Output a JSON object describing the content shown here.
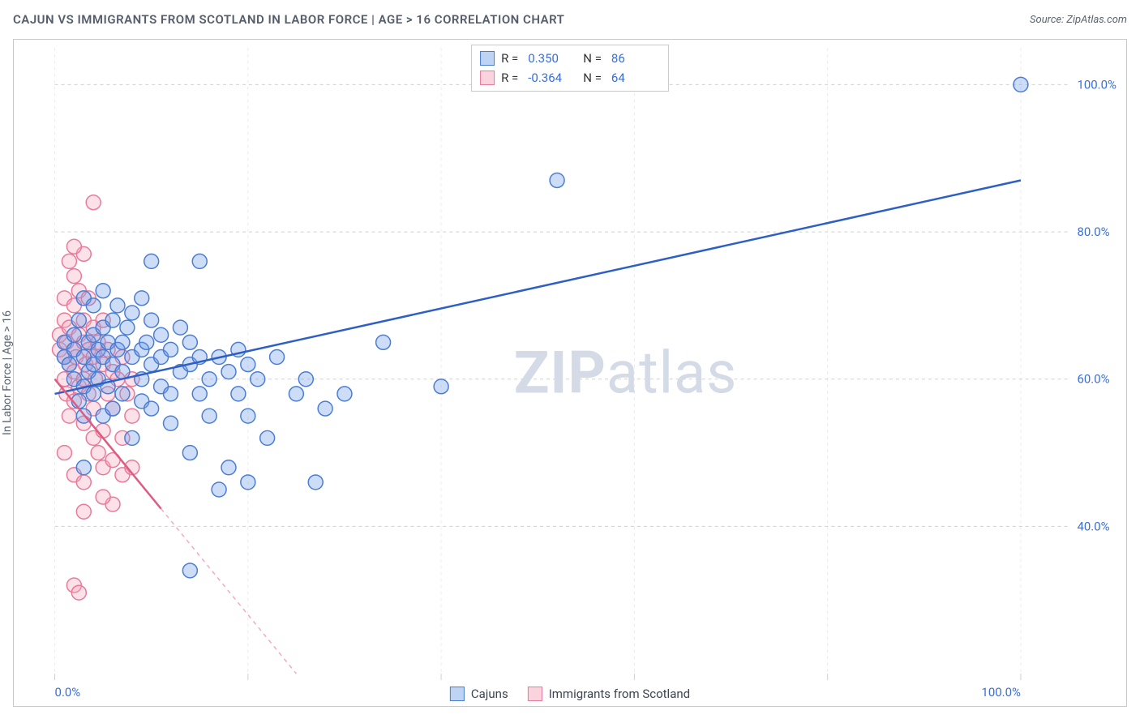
{
  "title": "CAJUN VS IMMIGRANTS FROM SCOTLAND IN LABOR FORCE | AGE > 16 CORRELATION CHART",
  "source": "Source: ZipAtlas.com",
  "ylabel": "In Labor Force | Age > 16",
  "watermark_zip": "ZIP",
  "watermark_atlas": "atlas",
  "chart": {
    "type": "scatter",
    "background_color": "#ffffff",
    "grid_color": "#d0d0d0",
    "border_color": "#c8c8c8",
    "xlim": [
      0,
      105
    ],
    "ylim": [
      20,
      105
    ],
    "x_gridlines": [
      0,
      20,
      40,
      60,
      80,
      100
    ],
    "y_gridlines": [
      40,
      60,
      80,
      100
    ],
    "x_tick_labels": {
      "0": "0.0%",
      "100": "100.0%"
    },
    "y_tick_labels": {
      "40": "40.0%",
      "60": "60.0%",
      "80": "80.0%",
      "100": "100.0%"
    },
    "axis_label_color": "#3a6fd8",
    "axis_label_fontsize": 15,
    "marker_radius": 9,
    "marker_stroke_width": 1.5,
    "marker_fill_opacity": 0.35,
    "series": [
      {
        "name": "Cajuns",
        "color": "#6f9fe8",
        "stroke": "#4a7dd4",
        "correlation_R": "0.350",
        "correlation_N": "86",
        "trend_color": "#2d5fc4",
        "trend_width": 2.5,
        "trend_solid_from_x": 0,
        "trend_solid_to_x": 100,
        "trend": {
          "x1": 0,
          "y1": 58,
          "x2": 100,
          "y2": 87
        },
        "points": [
          [
            1,
            63
          ],
          [
            1,
            65
          ],
          [
            1.5,
            62
          ],
          [
            2,
            64
          ],
          [
            2,
            60
          ],
          [
            2,
            66
          ],
          [
            2.5,
            68
          ],
          [
            2.5,
            57
          ],
          [
            3,
            63
          ],
          [
            3,
            71
          ],
          [
            3,
            59
          ],
          [
            3,
            55
          ],
          [
            3.5,
            65
          ],
          [
            3.5,
            61
          ],
          [
            4,
            66
          ],
          [
            4,
            62
          ],
          [
            4,
            58
          ],
          [
            4,
            70
          ],
          [
            4.5,
            64
          ],
          [
            4.5,
            60
          ],
          [
            5,
            67
          ],
          [
            5,
            63
          ],
          [
            5,
            55
          ],
          [
            5,
            72
          ],
          [
            5.5,
            65
          ],
          [
            5.5,
            59
          ],
          [
            6,
            62
          ],
          [
            6,
            68
          ],
          [
            6,
            56
          ],
          [
            6.5,
            64
          ],
          [
            6.5,
            70
          ],
          [
            7,
            61
          ],
          [
            7,
            58
          ],
          [
            7,
            65
          ],
          [
            7.5,
            67
          ],
          [
            8,
            63
          ],
          [
            8,
            52
          ],
          [
            8,
            69
          ],
          [
            9,
            60
          ],
          [
            9,
            64
          ],
          [
            9,
            57
          ],
          [
            9,
            71
          ],
          [
            9.5,
            65
          ],
          [
            10,
            62
          ],
          [
            10,
            56
          ],
          [
            10,
            68
          ],
          [
            10,
            76
          ],
          [
            11,
            63
          ],
          [
            11,
            59
          ],
          [
            11,
            66
          ],
          [
            12,
            64
          ],
          [
            12,
            58
          ],
          [
            12,
            54
          ],
          [
            13,
            61
          ],
          [
            13,
            67
          ],
          [
            14,
            62
          ],
          [
            14,
            50
          ],
          [
            14,
            65
          ],
          [
            15,
            58
          ],
          [
            15,
            63
          ],
          [
            15,
            76
          ],
          [
            16,
            60
          ],
          [
            16,
            55
          ],
          [
            17,
            63
          ],
          [
            17,
            45
          ],
          [
            18,
            61
          ],
          [
            18,
            48
          ],
          [
            19,
            58
          ],
          [
            19,
            64
          ],
          [
            20,
            62
          ],
          [
            20,
            46
          ],
          [
            20,
            55
          ],
          [
            21,
            60
          ],
          [
            22,
            52
          ],
          [
            23,
            63
          ],
          [
            25,
            58
          ],
          [
            26,
            60
          ],
          [
            27,
            46
          ],
          [
            28,
            56
          ],
          [
            30,
            58
          ],
          [
            34,
            65
          ],
          [
            40,
            59
          ],
          [
            52,
            87
          ],
          [
            14,
            34
          ],
          [
            100,
            100
          ],
          [
            3,
            48
          ]
        ]
      },
      {
        "name": "Immigrants from Scotland",
        "color": "#f5a8bd",
        "stroke": "#e87a9a",
        "correlation_R": "-0.364",
        "correlation_N": "64",
        "trend_color": "#e05a82",
        "trend_width": 2.5,
        "trend_solid_from_x": 0,
        "trend_solid_to_x": 11,
        "trend": {
          "x1": 0,
          "y1": 60,
          "x2": 25,
          "y2": 20
        },
        "points": [
          [
            0.5,
            64
          ],
          [
            0.5,
            66
          ],
          [
            1,
            63
          ],
          [
            1,
            68
          ],
          [
            1,
            60
          ],
          [
            1,
            71
          ],
          [
            1.2,
            65
          ],
          [
            1.2,
            58
          ],
          [
            1.5,
            62
          ],
          [
            1.5,
            67
          ],
          [
            1.5,
            76
          ],
          [
            1.5,
            55
          ],
          [
            2,
            64
          ],
          [
            2,
            61
          ],
          [
            2,
            70
          ],
          [
            2,
            57
          ],
          [
            2,
            74
          ],
          [
            2.2,
            63
          ],
          [
            2.5,
            66
          ],
          [
            2.5,
            59
          ],
          [
            2.5,
            72
          ],
          [
            3,
            65
          ],
          [
            3,
            60
          ],
          [
            3,
            68
          ],
          [
            3,
            54
          ],
          [
            3,
            77
          ],
          [
            3.2,
            62
          ],
          [
            3.5,
            64
          ],
          [
            3.5,
            58
          ],
          [
            3.5,
            71
          ],
          [
            4,
            63
          ],
          [
            4,
            56
          ],
          [
            4,
            67
          ],
          [
            4,
            52
          ],
          [
            4.2,
            60
          ],
          [
            4.5,
            65
          ],
          [
            4.5,
            50
          ],
          [
            5,
            62
          ],
          [
            5,
            53
          ],
          [
            5,
            68
          ],
          [
            5,
            48
          ],
          [
            5.5,
            58
          ],
          [
            5.5,
            64
          ],
          [
            6,
            61
          ],
          [
            6,
            49
          ],
          [
            6,
            56
          ],
          [
            6.5,
            60
          ],
          [
            7,
            63
          ],
          [
            7,
            47
          ],
          [
            7,
            52
          ],
          [
            7.5,
            58
          ],
          [
            8,
            55
          ],
          [
            8,
            60
          ],
          [
            8,
            48
          ],
          [
            3,
            42
          ],
          [
            4,
            84
          ],
          [
            2,
            32
          ],
          [
            2.5,
            31
          ],
          [
            1,
            50
          ],
          [
            2,
            47
          ],
          [
            6,
            43
          ],
          [
            5,
            44
          ],
          [
            3,
            46
          ],
          [
            2,
            78
          ]
        ]
      }
    ],
    "legend_top": {
      "R_label": "R =",
      "N_label": "N ="
    },
    "legend_bottom": [
      {
        "swatch": "cajuns",
        "label": "Cajuns"
      },
      {
        "swatch": "scotland",
        "label": "Immigrants from Scotland"
      }
    ]
  }
}
